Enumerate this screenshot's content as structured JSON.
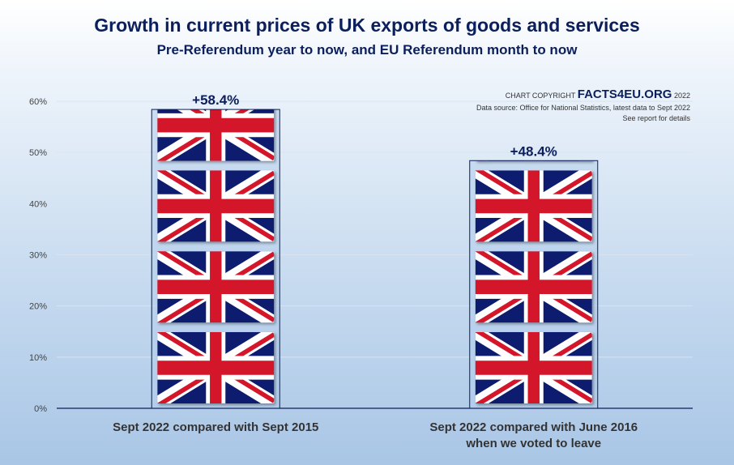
{
  "header": {
    "title": "Growth in current prices of UK exports of goods and services",
    "subtitle": "Pre-Referendum year to now, and EU Referendum month to now"
  },
  "credit": {
    "copyright_prefix": "CHART COPYRIGHT",
    "brand": "FACTS4EU.ORG",
    "year": "2022",
    "source": "Data source: Office for National Statistics, latest data to Sept 2022",
    "note": "See report for details"
  },
  "colors": {
    "text_dark": "#0b1f5c",
    "flag_blue": "#0b1f6e",
    "flag_red": "#d4122a",
    "flag_white": "#ffffff"
  },
  "chart_data": {
    "type": "bar",
    "categories": [
      "Sept 2022 compared with Sept 2015",
      "Sept 2022 compared with June 2016\nwhen we voted to leave"
    ],
    "category_lines": [
      [
        "Sept 2022 compared with Sept 2015"
      ],
      [
        "Sept 2022 compared with June 2016",
        "when we voted to leave"
      ]
    ],
    "values": [
      58.4,
      48.4
    ],
    "data_labels": [
      "+58.4%",
      "+48.4%"
    ],
    "ylim": [
      0,
      60
    ],
    "yticks": [
      0,
      10,
      20,
      30,
      40,
      50,
      60
    ],
    "ytick_labels": [
      "0%",
      "10%",
      "20%",
      "30%",
      "40%",
      "50%",
      "60%"
    ],
    "grid": true,
    "bar_fill": "union-jack-flag-icon"
  }
}
